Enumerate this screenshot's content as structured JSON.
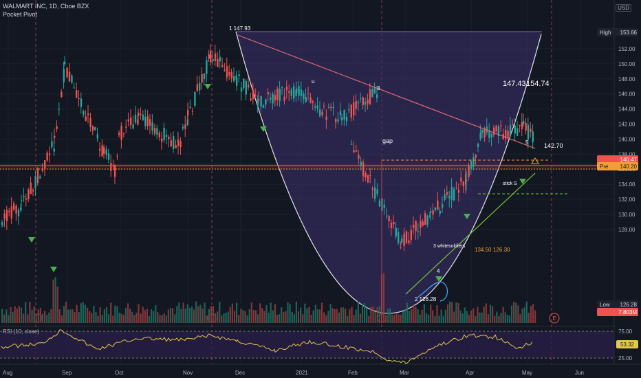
{
  "legend": {
    "symbol": "WALMART INC, 1D, Cboe BZX",
    "indicator": "Pocket Pivot"
  },
  "currency": "USD",
  "rsi_legend": "RSI (10, close)",
  "colors": {
    "background": "#131722",
    "up": "#26a69a",
    "down": "#ef5350",
    "pattern_fill": "#3b2f6b",
    "cup_curve": "#d8d8e0",
    "trend_red": "#e0696f",
    "trend_green": "#7cc13a",
    "marker": "#4caf50",
    "orange": "#f0a030",
    "rsi_line": "#e3c84c",
    "rsi_fill": "#2c1f4a"
  },
  "price_axis": {
    "ticks": [
      "152.00",
      "150.00",
      "148.00",
      "146.00",
      "144.00",
      "142.00",
      "140.00",
      "138.00",
      "136.00",
      "134.00",
      "132.00",
      "130.00",
      "128.00"
    ],
    "high_tag": {
      "label": "High",
      "value": "153.66"
    },
    "pre_tag": {
      "label": "Pre",
      "value": "140.20"
    },
    "last_tag": {
      "label": "",
      "value": "140.47"
    },
    "low_tag": {
      "label": "Low",
      "value": "126.28"
    },
    "volume_tag": {
      "value": "7.803M"
    }
  },
  "rsi_axis": {
    "ticks": [
      "75.00",
      "25.00"
    ],
    "value_tag": "53.32"
  },
  "time_axis": [
    "Aug",
    "Sep",
    "Oct",
    "Nov",
    "Dec",
    "2021",
    "Feb",
    "Mar",
    "Apr",
    "May",
    "Jun"
  ],
  "annotations": {
    "top_label": "1 147.93",
    "peak_u": "u",
    "point3": "3",
    "gap": "gap",
    "target_left": "147.43",
    "target_right": "154.74",
    "point5": "5",
    "level_142": "142.70",
    "stick": "stick S",
    "three_soldiers": "3 whitesoldiers",
    "level_134": "134.50",
    "level_126": "126.30",
    "point4": "4",
    "bottom_label": "2 126.28",
    "earnings": "E"
  },
  "chart_data": {
    "type": "candlestick",
    "title": "WALMART INC, 1D, Cboe BZX",
    "x": [
      "Aug",
      "Sep",
      "Oct",
      "Nov",
      "Dec",
      "2021",
      "Feb",
      "Mar",
      "Apr",
      "May",
      "Jun"
    ],
    "ylim": [
      126,
      154
    ],
    "price_path": [
      {
        "date": "Aug start",
        "close": 129.5
      },
      {
        "date": "Aug mid",
        "close": 131.0
      },
      {
        "date": "late Aug",
        "close": 139.5
      },
      {
        "date": "Aug end",
        "close": 149.5
      },
      {
        "date": "Sep mid",
        "close": 138.0
      },
      {
        "date": "Sep end",
        "close": 136.0
      },
      {
        "date": "Oct start",
        "close": 140.5
      },
      {
        "date": "Oct mid",
        "close": 143.0
      },
      {
        "date": "Oct end",
        "close": 139.0
      },
      {
        "date": "Nov start",
        "close": 143.0
      },
      {
        "date": "Nov mid",
        "close": 151.0
      },
      {
        "date": "Dec start",
        "close": 147.93
      },
      {
        "date": "Dec mid",
        "close": 145.0
      },
      {
        "date": "2021 start",
        "close": 146.5
      },
      {
        "date": "Jan mid",
        "close": 143.5
      },
      {
        "date": "Feb start",
        "close": 143.0
      },
      {
        "date": "Feb mid",
        "close": 146.5
      },
      {
        "date": "Feb late",
        "close": 139.0
      },
      {
        "date": "Mar start",
        "close": 126.28
      },
      {
        "date": "Mar mid",
        "close": 130.0
      },
      {
        "date": "Apr start",
        "close": 134.5
      },
      {
        "date": "Apr mid",
        "close": 140.5
      },
      {
        "date": "May start",
        "close": 141.5
      },
      {
        "date": "May mid",
        "close": 140.47
      }
    ],
    "high": 153.66,
    "low": 126.28,
    "last": 140.47,
    "premarket": 140.2,
    "volume_last": "7.803M",
    "rsi": {
      "period": 10,
      "last": 53.32,
      "levels": [
        75,
        25
      ]
    }
  }
}
